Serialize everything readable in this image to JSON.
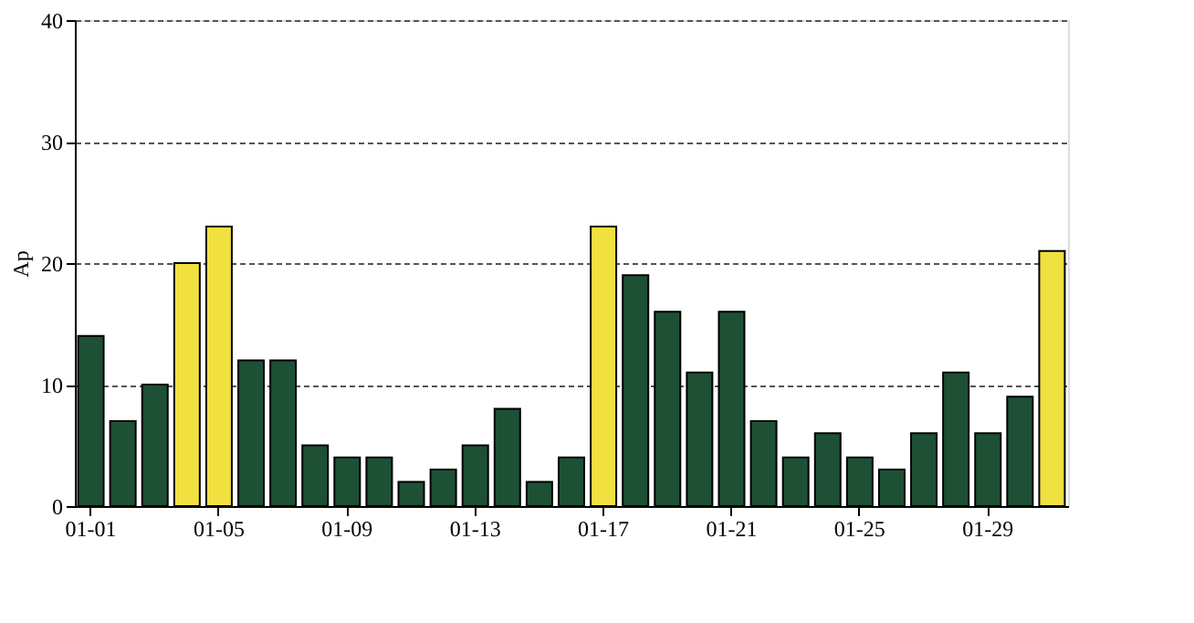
{
  "chart_data": {
    "type": "bar",
    "ylabel": "Ap",
    "categories": [
      "01-01",
      null,
      null,
      null,
      "01-05",
      null,
      null,
      null,
      "01-09",
      null,
      null,
      null,
      "01-13",
      null,
      null,
      null,
      "01-17",
      null,
      null,
      null,
      "01-21",
      null,
      null,
      null,
      "01-25",
      null,
      null,
      null,
      "01-29",
      null,
      null
    ],
    "values": [
      14,
      7,
      10,
      20,
      23,
      12,
      12,
      5,
      4,
      4,
      2,
      3,
      5,
      8,
      2,
      4,
      23,
      19,
      16,
      11,
      16,
      7,
      4,
      6,
      4,
      3,
      6,
      11,
      6,
      9,
      21
    ],
    "colors": [
      "#1e5035",
      "#1e5035",
      "#1e5035",
      "#f0e040",
      "#f0e040",
      "#1e5035",
      "#1e5035",
      "#1e5035",
      "#1e5035",
      "#1e5035",
      "#1e5035",
      "#1e5035",
      "#1e5035",
      "#1e5035",
      "#1e5035",
      "#1e5035",
      "#f0e040",
      "#1e5035",
      "#1e5035",
      "#1e5035",
      "#1e5035",
      "#1e5035",
      "#1e5035",
      "#1e5035",
      "#1e5035",
      "#1e5035",
      "#1e5035",
      "#1e5035",
      "#1e5035",
      "#1e5035",
      "#f0e040"
    ],
    "ylim": [
      0,
      40
    ],
    "yticks": [
      0,
      10,
      20,
      30,
      40
    ],
    "grid": "y"
  }
}
